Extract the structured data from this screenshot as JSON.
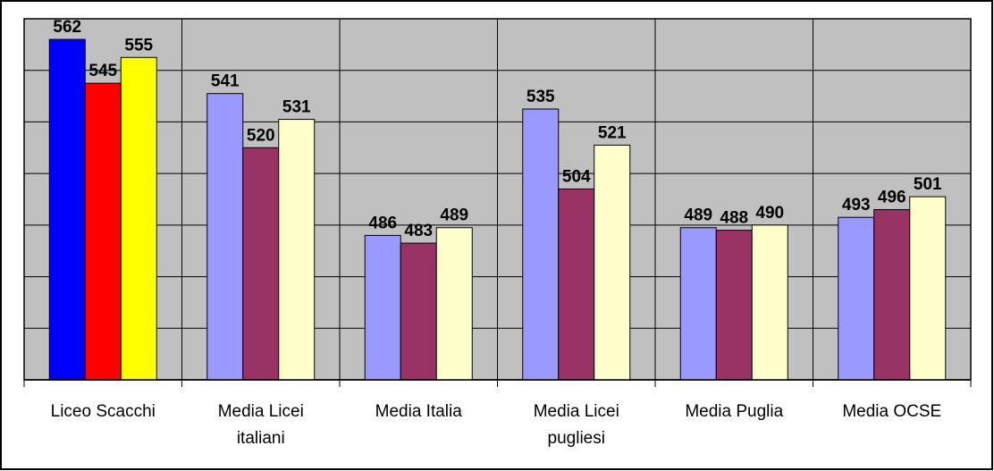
{
  "chart_data": {
    "type": "bar",
    "categories": [
      [
        "Liceo Scacchi"
      ],
      [
        "Media Licei",
        "italiani"
      ],
      [
        "Media Italia"
      ],
      [
        "Media Licei",
        "pugliesi"
      ],
      [
        "Media Puglia"
      ],
      [
        "Media OCSE"
      ]
    ],
    "series": [
      {
        "values": [
          562,
          541,
          486,
          535,
          489,
          493
        ]
      },
      {
        "values": [
          545,
          520,
          483,
          504,
          488,
          496
        ]
      },
      {
        "values": [
          555,
          531,
          489,
          521,
          490,
          501
        ]
      }
    ],
    "data_labels": [
      [
        "562",
        "545",
        "555"
      ],
      [
        "541",
        "520",
        "531"
      ],
      [
        "486",
        "483",
        "489"
      ],
      [
        "535",
        "504",
        "521"
      ],
      [
        "489",
        "488",
        "490"
      ],
      [
        "493",
        "496",
        "501"
      ]
    ],
    "ylim": [
      430,
      570
    ],
    "gridline_interval": 20,
    "grid": true,
    "legend": "none",
    "colors": {
      "plot_background": "#c0c0c0",
      "gridline": "#000000",
      "default_series": [
        "#9999ff",
        "#993366",
        "#ffffcc"
      ],
      "highlight_category_series": [
        "#0000ff",
        "#ff0000",
        "#ffff00"
      ]
    }
  }
}
